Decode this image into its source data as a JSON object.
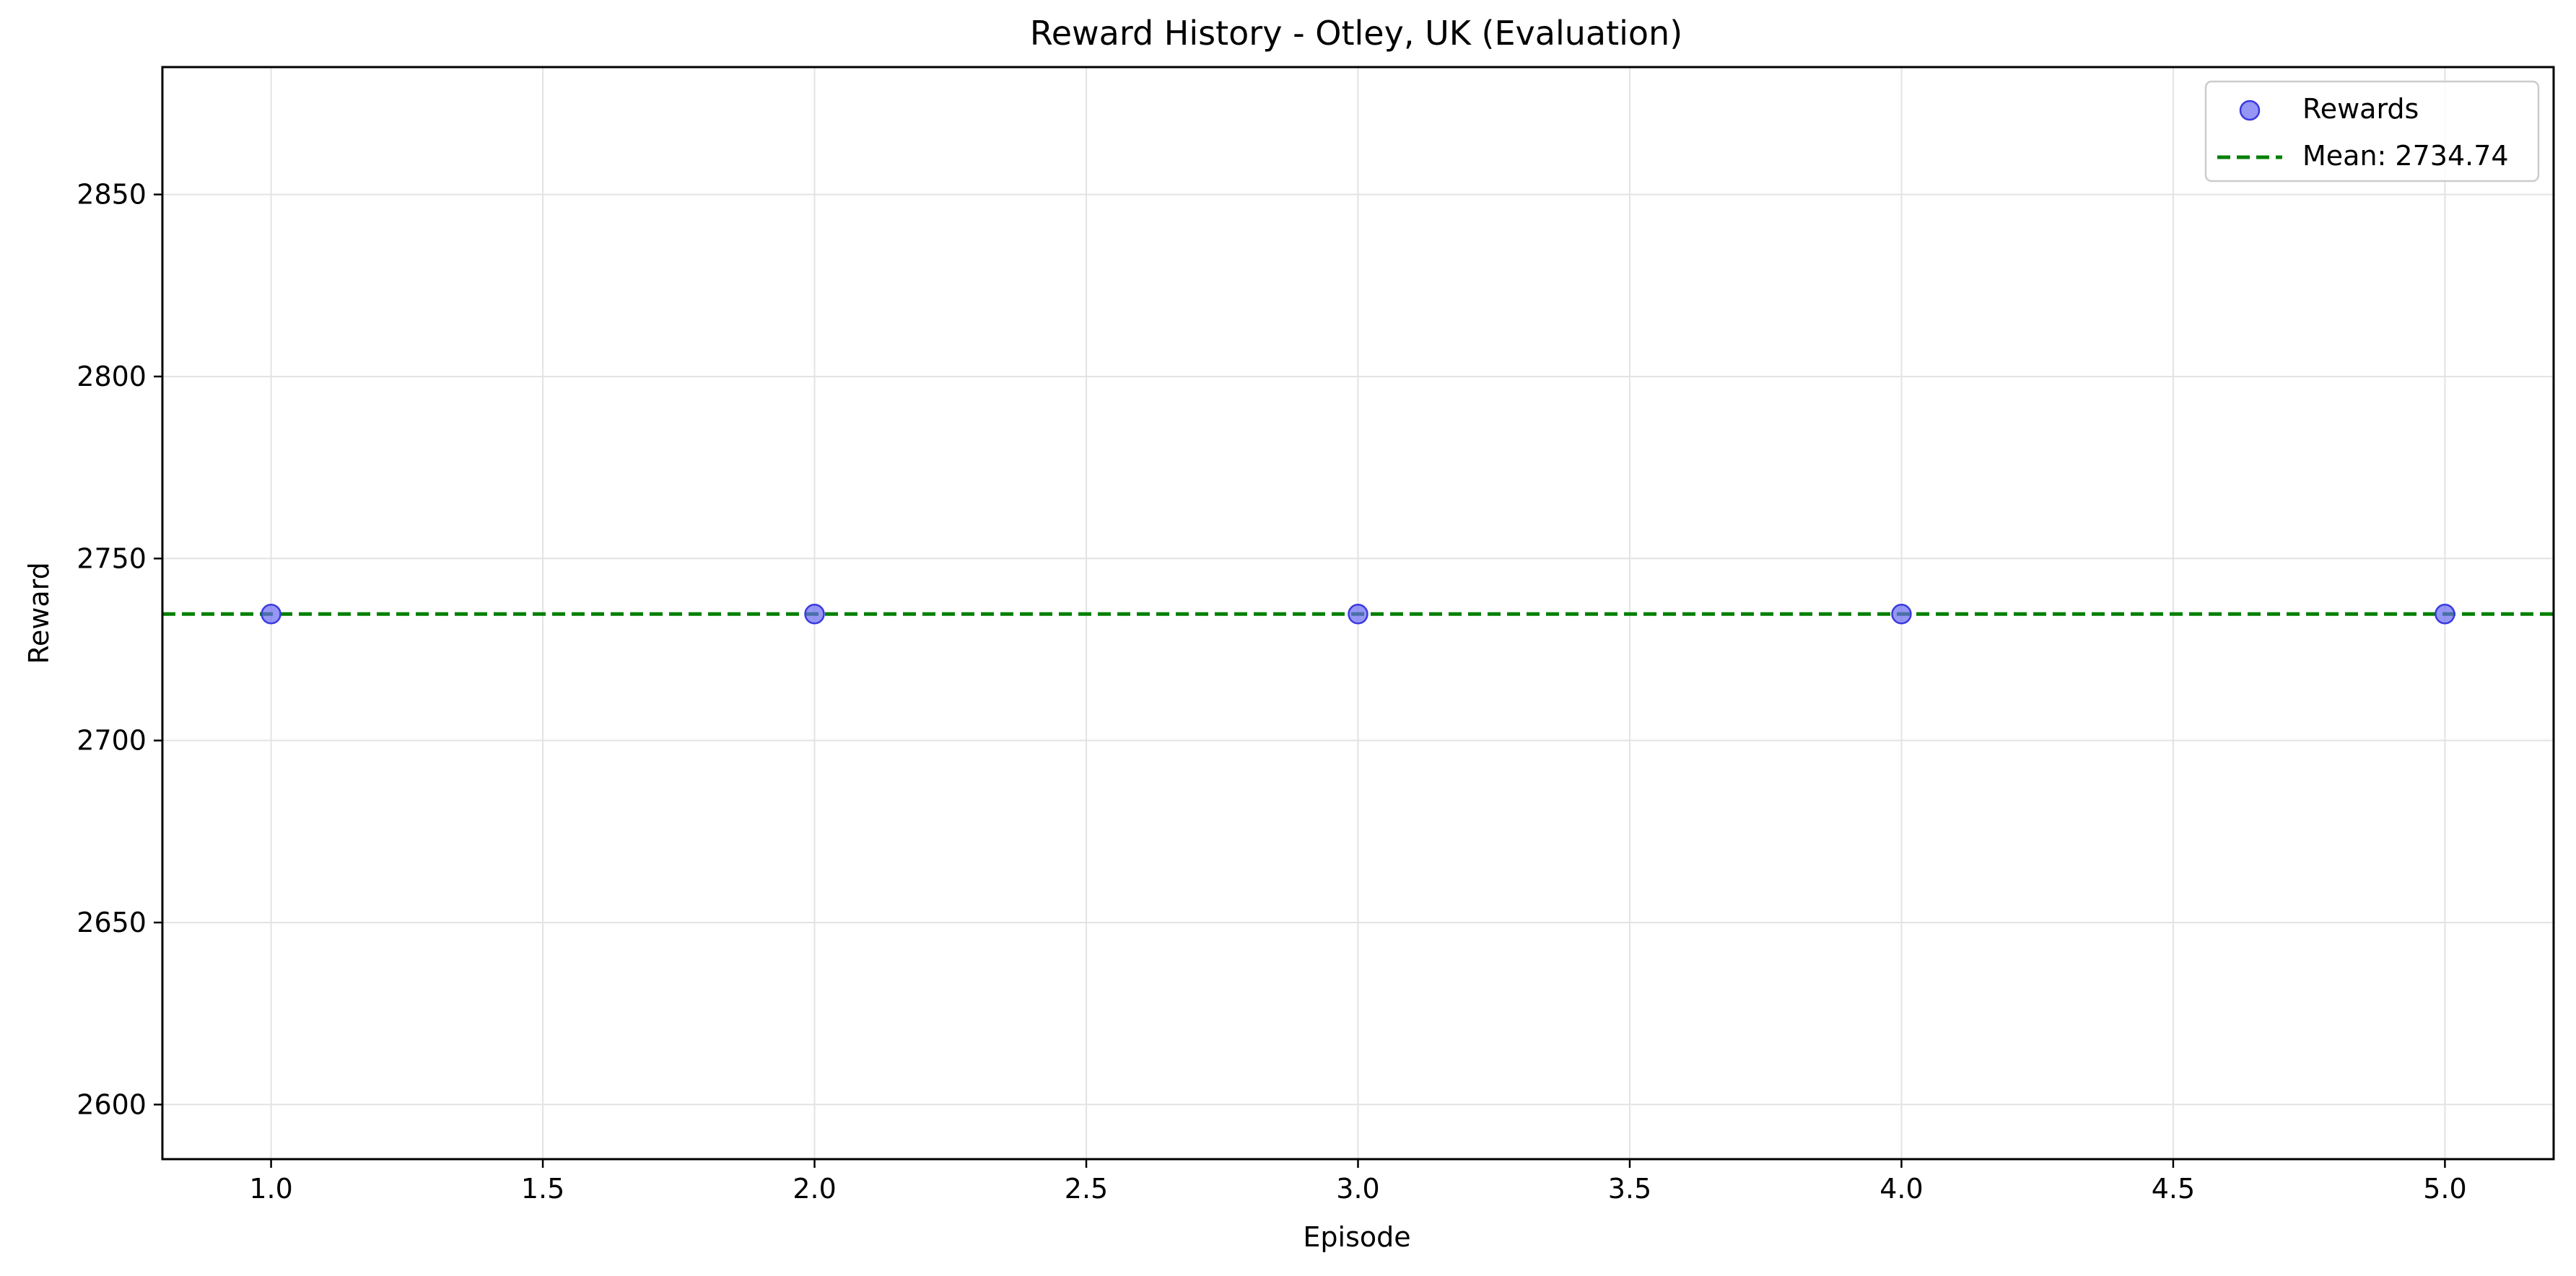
{
  "chart_data": {
    "type": "scatter",
    "title": "Reward History - Otley, UK (Evaluation)",
    "xlabel": "Episode",
    "ylabel": "Reward",
    "xlim": [
      0.8,
      5.2
    ],
    "ylim": [
      2585,
      2885
    ],
    "x_ticks": [
      1.0,
      1.5,
      2.0,
      2.5,
      3.0,
      3.5,
      4.0,
      4.5,
      5.0
    ],
    "x_tick_labels": [
      "1.0",
      "1.5",
      "2.0",
      "2.5",
      "3.0",
      "3.5",
      "4.0",
      "4.5",
      "5.0"
    ],
    "y_ticks": [
      2600,
      2650,
      2700,
      2750,
      2800,
      2850
    ],
    "y_tick_labels": [
      "2600",
      "2650",
      "2700",
      "2750",
      "2800",
      "2850"
    ],
    "grid": true,
    "legend_position": "upper right",
    "series": [
      {
        "name": "Rewards",
        "kind": "scatter",
        "color": "#6a6af0",
        "x": [
          1,
          2,
          3,
          4,
          5
        ],
        "y": [
          2734.74,
          2734.74,
          2734.74,
          2734.74,
          2734.74
        ]
      },
      {
        "name": "Mean: 2734.74",
        "kind": "hline",
        "color": "#008000",
        "y": 2734.74
      }
    ]
  }
}
